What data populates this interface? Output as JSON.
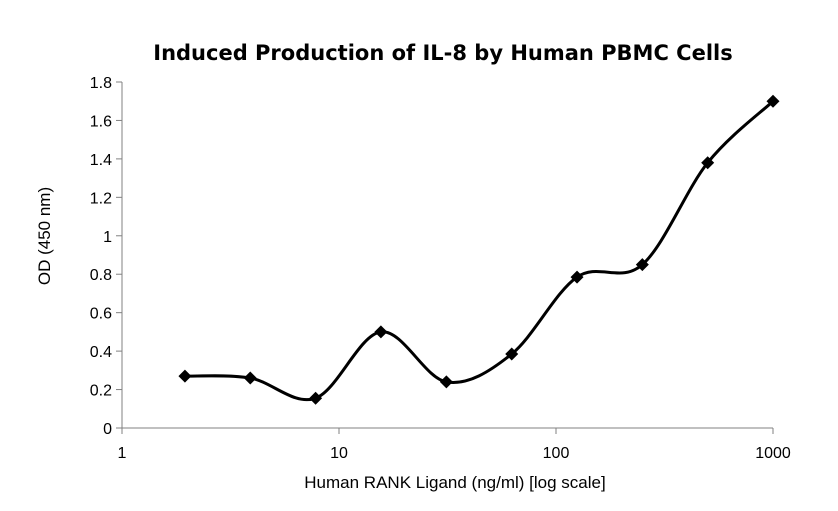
{
  "chart_data": {
    "type": "line",
    "title": "Induced Production of IL-8 by Human PBMC Cells",
    "xlabel": "Human RANK Ligand (ng/ml) [log scale]",
    "ylabel": "OD (450 nm)",
    "x_scale": "log",
    "xlim": [
      1,
      1000
    ],
    "ylim": [
      0,
      1.8
    ],
    "x_ticks": [
      "1",
      "10",
      "100",
      "1000"
    ],
    "y_ticks": [
      "0",
      "0.2",
      "0.4",
      "0.6",
      "0.8",
      "1",
      "1.2",
      "1.4",
      "1.6",
      "1.8"
    ],
    "grid": false,
    "legend": "none",
    "marker": "diamond",
    "smooth": true,
    "line_color": "#000000",
    "series": [
      {
        "x": [
          1.95,
          3.9,
          7.8,
          15.6,
          31.25,
          62.5,
          125,
          250,
          500,
          1000
        ],
        "y": [
          0.27,
          0.26,
          0.155,
          0.5,
          0.24,
          0.385,
          0.785,
          0.85,
          1.38,
          1.7
        ]
      }
    ]
  }
}
